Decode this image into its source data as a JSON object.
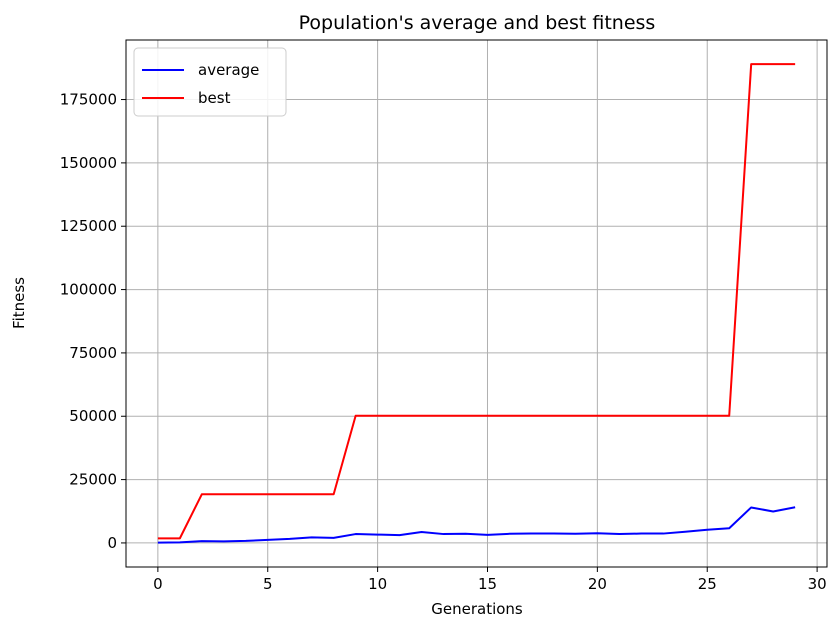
{
  "chart_data": {
    "type": "line",
    "title": "Population's average and best fitness",
    "xlabel": "Generations",
    "ylabel": "Fitness",
    "xlim": [
      -1.45,
      30.45
    ],
    "ylim": [
      -9500,
      198500
    ],
    "xticks": [
      0,
      5,
      10,
      15,
      20,
      25,
      30
    ],
    "yticks": [
      0,
      25000,
      50000,
      75000,
      100000,
      125000,
      150000,
      175000
    ],
    "grid": true,
    "legend_position": "top-left",
    "x": [
      0,
      1,
      2,
      3,
      4,
      5,
      6,
      7,
      8,
      9,
      10,
      11,
      12,
      13,
      14,
      15,
      16,
      17,
      18,
      19,
      20,
      21,
      22,
      23,
      24,
      25,
      26,
      27,
      28,
      29
    ],
    "series": [
      {
        "name": "average",
        "color": "#0000ff",
        "values": [
          100,
          200,
          700,
          600,
          800,
          1200,
          1600,
          2200,
          2000,
          3500,
          3300,
          3100,
          4300,
          3500,
          3600,
          3200,
          3600,
          3700,
          3700,
          3600,
          3800,
          3500,
          3700,
          3700,
          4400,
          5200,
          5800,
          14000,
          12400,
          14100
        ]
      },
      {
        "name": "best",
        "color": "#ff0000",
        "values": [
          1800,
          1800,
          19200,
          19200,
          19200,
          19200,
          19200,
          19200,
          19200,
          50200,
          50200,
          50200,
          50200,
          50200,
          50200,
          50200,
          50200,
          50200,
          50200,
          50200,
          50200,
          50200,
          50200,
          50200,
          50200,
          50200,
          50200,
          189000,
          189000,
          189000
        ]
      }
    ]
  }
}
